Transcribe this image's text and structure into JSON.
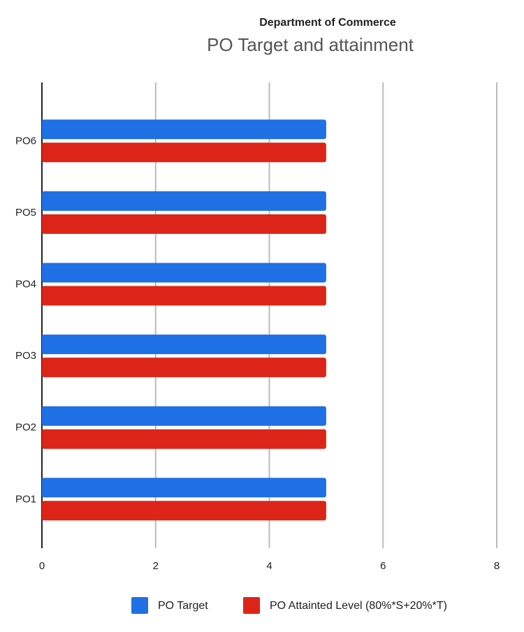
{
  "chart_data": {
    "type": "bar",
    "orientation": "horizontal",
    "title": "Department of Commerce",
    "subtitle": "PO Target and attainment",
    "categories": [
      "PO1",
      "PO2",
      "PO3",
      "PO4",
      "PO5",
      "PO6"
    ],
    "series": [
      {
        "name": "PO Target",
        "color": "#1f6fe5",
        "values": [
          5,
          5,
          5,
          5,
          5,
          5
        ]
      },
      {
        "name": "PO Attainted Level (80%*S+20%*T)",
        "color": "#dd2418",
        "values": [
          5,
          5,
          5,
          5,
          5,
          5
        ]
      }
    ],
    "xlim": [
      0,
      8
    ],
    "xticks": [
      0,
      2,
      4,
      6,
      8
    ],
    "grid": true,
    "legend": "bottom"
  }
}
